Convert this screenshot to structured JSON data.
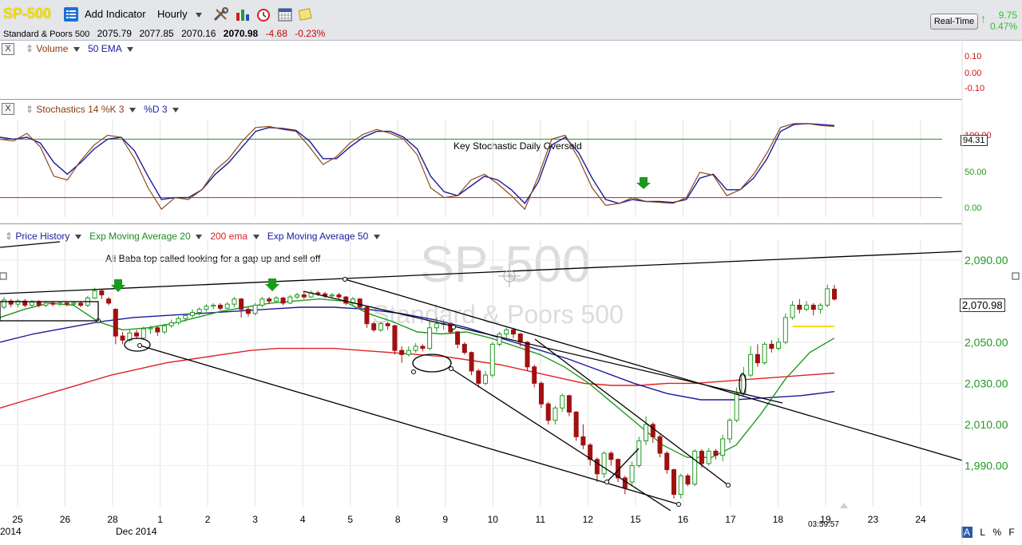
{
  "toolbar": {
    "symbol": "SP-500",
    "add_indicator": "Add Indicator",
    "period": "Hourly",
    "icons": [
      "list-icon",
      "tools-icon",
      "bar-chart-icon",
      "alarm-clock-icon",
      "calendar-grid-icon",
      "notes-icon"
    ],
    "realtime": "Real-Time",
    "rt_change_points": "9.75",
    "rt_change_pct": "0.47%"
  },
  "quote": {
    "name": "Standard & Poors 500",
    "open": "2075.79",
    "high": "2077.85",
    "low": "2070.16",
    "close": "2070.98",
    "change": "-4.68",
    "change_pct": "-0.23%"
  },
  "volume_pane": {
    "close_label": "X",
    "label": "Volume",
    "overlay": "50 EMA",
    "ticks": [
      "0.10",
      "0.00",
      "-0.10"
    ]
  },
  "stoch_pane": {
    "close_label": "X",
    "label": "Stochastics 14 %K 3",
    "overlay": "%D 3",
    "annotation": "Key Stochastic Daily Oversold",
    "ticks": [
      "100.00",
      "50.00",
      "0.00"
    ],
    "current": "94.31"
  },
  "price_pane": {
    "label": "Price History",
    "ema20": "Exp Moving Average 20",
    "ema200": "200 ema",
    "ema50": "Exp Moving Average 50",
    "watermark_symbol": "SP-500",
    "watermark_name": "Standard & Poors 500",
    "annotation": "Ali Baba top called looking for a gap up and sell off",
    "current_price": "2,070.98",
    "time_label": "03:59:57"
  },
  "colors": {
    "up": "#1f9a1f",
    "down": "#a01010",
    "ema20": "#1f9a1f",
    "ema200": "#e02020",
    "ema50": "#1a1a9a",
    "stoch_k": "#8b4a1a",
    "stoch_d": "#1a1a9a",
    "overbought": "#2a8a2a",
    "oversold": "#c02020"
  },
  "bottom_controls": [
    "A",
    "L",
    "%",
    "F"
  ],
  "chart_data": {
    "type": "candlestick",
    "x_ticks": [
      "25",
      "26",
      "28",
      "1",
      "2",
      "3",
      "4",
      "5",
      "8",
      "9",
      "10",
      "11",
      "12",
      "15",
      "16",
      "17",
      "18",
      "19",
      "23",
      "24"
    ],
    "x_sub_labels": [
      "2014",
      "Dec 2014"
    ],
    "ylim": [
      1970,
      2100
    ],
    "y_ticks": [
      2090,
      2050,
      2030,
      2010,
      1990
    ],
    "y_tick_labels": [
      "2,090.00",
      "2,050.00",
      "2,030.00",
      "2,010.00",
      "1,990.00"
    ],
    "candles": [
      {
        "o": 2067.0,
        "c": 2070.5,
        "h": 2072,
        "l": 2066
      },
      {
        "o": 2070.0,
        "c": 2068.5,
        "h": 2071,
        "l": 2067
      },
      {
        "o": 2068.5,
        "c": 2070.0,
        "h": 2071,
        "l": 2067
      },
      {
        "o": 2070.0,
        "c": 2068.0,
        "h": 2071,
        "l": 2067
      },
      {
        "o": 2068.0,
        "c": 2069.5,
        "h": 2070.5,
        "l": 2067
      },
      {
        "o": 2069.5,
        "c": 2068.0,
        "h": 2070.5,
        "l": 2067
      },
      {
        "o": 2068.0,
        "c": 2069.0,
        "h": 2070,
        "l": 2067
      },
      {
        "o": 2069.0,
        "c": 2068.5,
        "h": 2070,
        "l": 2067.5
      },
      {
        "o": 2068.5,
        "c": 2069.0,
        "h": 2070,
        "l": 2067.5
      },
      {
        "o": 2069.0,
        "c": 2068.5,
        "h": 2070,
        "l": 2067.5
      },
      {
        "o": 2068.5,
        "c": 2069.0,
        "h": 2070,
        "l": 2067.5
      },
      {
        "o": 2069.0,
        "c": 2068.0,
        "h": 2070,
        "l": 2067
      },
      {
        "o": 2068.0,
        "c": 2071.5,
        "h": 2072.5,
        "l": 2067
      },
      {
        "o": 2071.5,
        "c": 2075.0,
        "h": 2076.5,
        "l": 2071
      },
      {
        "o": 2075.0,
        "c": 2073.0,
        "h": 2075.5,
        "l": 2071
      },
      {
        "o": 2071.0,
        "c": 2069.0,
        "h": 2072,
        "l": 2068
      },
      {
        "o": 2066.0,
        "c": 2053.0,
        "h": 2066.5,
        "l": 2049
      },
      {
        "o": 2053.0,
        "c": 2051.0,
        "h": 2055,
        "l": 2049
      },
      {
        "o": 2051.0,
        "c": 2054.5,
        "h": 2056,
        "l": 2050
      },
      {
        "o": 2054.5,
        "c": 2053.0,
        "h": 2056,
        "l": 2051.5
      },
      {
        "o": 2052.0,
        "c": 2056.5,
        "h": 2057.5,
        "l": 2051
      },
      {
        "o": 2056.5,
        "c": 2057.0,
        "h": 2058,
        "l": 2054
      },
      {
        "o": 2057.0,
        "c": 2055.0,
        "h": 2058,
        "l": 2053
      },
      {
        "o": 2055.0,
        "c": 2058.0,
        "h": 2059,
        "l": 2054
      },
      {
        "o": 2058.0,
        "c": 2059.5,
        "h": 2061,
        "l": 2057
      },
      {
        "o": 2059.5,
        "c": 2061.5,
        "h": 2062.5,
        "l": 2058.5
      },
      {
        "o": 2061.5,
        "c": 2063.0,
        "h": 2064,
        "l": 2060
      },
      {
        "o": 2063.0,
        "c": 2064.5,
        "h": 2066,
        "l": 2062
      },
      {
        "o": 2064.5,
        "c": 2066.0,
        "h": 2067,
        "l": 2063
      },
      {
        "o": 2066.0,
        "c": 2067.5,
        "h": 2068.5,
        "l": 2065
      },
      {
        "o": 2067.5,
        "c": 2068.0,
        "h": 2069,
        "l": 2066
      },
      {
        "o": 2068.0,
        "c": 2066.5,
        "h": 2069,
        "l": 2065.5
      },
      {
        "o": 2066.5,
        "c": 2068.5,
        "h": 2069.5,
        "l": 2066
      },
      {
        "o": 2068.5,
        "c": 2071.0,
        "h": 2072,
        "l": 2067
      },
      {
        "o": 2071.0,
        "c": 2066.0,
        "h": 2071.5,
        "l": 2062
      },
      {
        "o": 2066.0,
        "c": 2064.0,
        "h": 2067,
        "l": 2062.5
      },
      {
        "o": 2064.0,
        "c": 2068.0,
        "h": 2069,
        "l": 2063
      },
      {
        "o": 2068.0,
        "c": 2071.0,
        "h": 2072,
        "l": 2067
      },
      {
        "o": 2071.0,
        "c": 2070.0,
        "h": 2072,
        "l": 2068.5
      },
      {
        "o": 2070.0,
        "c": 2071.5,
        "h": 2072.5,
        "l": 2069
      },
      {
        "o": 2071.5,
        "c": 2069.0,
        "h": 2072,
        "l": 2068
      },
      {
        "o": 2069.0,
        "c": 2072.0,
        "h": 2073,
        "l": 2068.5
      },
      {
        "o": 2072.0,
        "c": 2073.0,
        "h": 2074,
        "l": 2071
      },
      {
        "o": 2073.0,
        "c": 2072.0,
        "h": 2074.5,
        "l": 2071
      },
      {
        "o": 2072.0,
        "c": 2074.0,
        "h": 2075,
        "l": 2071.5
      },
      {
        "o": 2074.0,
        "c": 2073.5,
        "h": 2075,
        "l": 2072.5
      },
      {
        "o": 2073.5,
        "c": 2072.5,
        "h": 2074.5,
        "l": 2071.5
      },
      {
        "o": 2072.5,
        "c": 2073.0,
        "h": 2074,
        "l": 2071.5
      },
      {
        "o": 2073.0,
        "c": 2072.0,
        "h": 2074,
        "l": 2071
      },
      {
        "o": 2072.0,
        "c": 2069.0,
        "h": 2072.5,
        "l": 2068
      },
      {
        "o": 2069.0,
        "c": 2071.0,
        "h": 2072,
        "l": 2068
      },
      {
        "o": 2071.0,
        "c": 2067.0,
        "h": 2071.5,
        "l": 2066
      },
      {
        "o": 2067.0,
        "c": 2059.0,
        "h": 2067.5,
        "l": 2057
      },
      {
        "o": 2059.0,
        "c": 2056.0,
        "h": 2060,
        "l": 2055
      },
      {
        "o": 2056.0,
        "c": 2059.0,
        "h": 2060,
        "l": 2055
      },
      {
        "o": 2059.0,
        "c": 2058.0,
        "h": 2060,
        "l": 2056
      },
      {
        "o": 2058.0,
        "c": 2046.0,
        "h": 2058.5,
        "l": 2044
      },
      {
        "o": 2046.0,
        "c": 2044.0,
        "h": 2048,
        "l": 2040
      },
      {
        "o": 2044.0,
        "c": 2046.0,
        "h": 2048,
        "l": 2043
      },
      {
        "o": 2046.0,
        "c": 2048.0,
        "h": 2049.5,
        "l": 2045
      },
      {
        "o": 2048.0,
        "c": 2047.0,
        "h": 2049,
        "l": 2045.5
      },
      {
        "o": 2047.0,
        "c": 2057.0,
        "h": 2060,
        "l": 2046
      },
      {
        "o": 2057.0,
        "c": 2059.0,
        "h": 2062,
        "l": 2055
      },
      {
        "o": 2059.0,
        "c": 2059.0,
        "h": 2061,
        "l": 2056
      },
      {
        "o": 2059.0,
        "c": 2055.0,
        "h": 2059.5,
        "l": 2054
      },
      {
        "o": 2055.0,
        "c": 2049.0,
        "h": 2055.5,
        "l": 2047
      },
      {
        "o": 2049.0,
        "c": 2045.0,
        "h": 2050,
        "l": 2044
      },
      {
        "o": 2045.0,
        "c": 2036.0,
        "h": 2045.5,
        "l": 2034
      },
      {
        "o": 2036.0,
        "c": 2030.0,
        "h": 2037,
        "l": 2028
      },
      {
        "o": 2030.0,
        "c": 2034.0,
        "h": 2036,
        "l": 2029
      },
      {
        "o": 2034.0,
        "c": 2049.0,
        "h": 2050,
        "l": 2033
      },
      {
        "o": 2049.0,
        "c": 2054.0,
        "h": 2055,
        "l": 2048
      },
      {
        "o": 2054.0,
        "c": 2056.0,
        "h": 2057,
        "l": 2052
      },
      {
        "o": 2056.0,
        "c": 2054.0,
        "h": 2057,
        "l": 2052
      },
      {
        "o": 2054.0,
        "c": 2050.0,
        "h": 2054.5,
        "l": 2048
      },
      {
        "o": 2050.0,
        "c": 2038.0,
        "h": 2050.5,
        "l": 2036
      },
      {
        "o": 2038.0,
        "c": 2030.0,
        "h": 2039,
        "l": 2028
      },
      {
        "o": 2030.0,
        "c": 2020.0,
        "h": 2031,
        "l": 2018
      },
      {
        "o": 2020.0,
        "c": 2012.0,
        "h": 2021,
        "l": 2010
      },
      {
        "o": 2012.0,
        "c": 2018.0,
        "h": 2019,
        "l": 2010
      },
      {
        "o": 2018.0,
        "c": 2024.0,
        "h": 2025,
        "l": 2016
      },
      {
        "o": 2024.0,
        "c": 2016.0,
        "h": 2024.5,
        "l": 2014
      },
      {
        "o": 2016.0,
        "c": 2004.0,
        "h": 2016.5,
        "l": 2002
      },
      {
        "o": 2004.0,
        "c": 2000.0,
        "h": 2010,
        "l": 1998
      },
      {
        "o": 2000.0,
        "c": 1993.0,
        "h": 2001,
        "l": 1990
      },
      {
        "o": 1993.0,
        "c": 1986.0,
        "h": 1994,
        "l": 1982
      },
      {
        "o": 1986.0,
        "c": 1996.0,
        "h": 1997,
        "l": 1984
      },
      {
        "o": 1996.0,
        "c": 1993.0,
        "h": 1997,
        "l": 1990
      },
      {
        "o": 1993.0,
        "c": 1984.0,
        "h": 1993.5,
        "l": 1982
      },
      {
        "o": 1984.0,
        "c": 1979.0,
        "h": 1985,
        "l": 1976
      },
      {
        "o": 1982.0,
        "c": 1990.0,
        "h": 1992,
        "l": 1980
      },
      {
        "o": 1990.0,
        "c": 2002.0,
        "h": 2004,
        "l": 1989
      },
      {
        "o": 2002.0,
        "c": 2010.0,
        "h": 2014,
        "l": 2000
      },
      {
        "o": 2010.0,
        "c": 2004.0,
        "h": 2011,
        "l": 2001
      },
      {
        "o": 2004.0,
        "c": 1996.0,
        "h": 2005,
        "l": 1994
      },
      {
        "o": 1996.0,
        "c": 1988.0,
        "h": 1997,
        "l": 1986
      },
      {
        "o": 1988.0,
        "c": 1976.0,
        "h": 1988.5,
        "l": 1974
      },
      {
        "o": 1976.0,
        "c": 1985.0,
        "h": 1986,
        "l": 1974
      },
      {
        "o": 1985.0,
        "c": 1981.0,
        "h": 1986,
        "l": 1980
      },
      {
        "o": 1981.0,
        "c": 1997.0,
        "h": 1998,
        "l": 1980
      },
      {
        "o": 1997.0,
        "c": 1991.0,
        "h": 1998,
        "l": 1989
      },
      {
        "o": 1991.0,
        "c": 1997.0,
        "h": 1998.5,
        "l": 1990
      },
      {
        "o": 1997.0,
        "c": 1995.0,
        "h": 1998,
        "l": 1993
      },
      {
        "o": 1995.0,
        "c": 2003.0,
        "h": 2005,
        "l": 1992
      },
      {
        "o": 2003.0,
        "c": 2012.0,
        "h": 2013,
        "l": 2001
      },
      {
        "o": 2012.0,
        "c": 2025.0,
        "h": 2028,
        "l": 2011
      },
      {
        "o": 2025.0,
        "c": 2034.0,
        "h": 2038,
        "l": 2024
      },
      {
        "o": 2034.0,
        "c": 2044.0,
        "h": 2048,
        "l": 2033
      },
      {
        "o": 2044.0,
        "c": 2040.0,
        "h": 2049,
        "l": 2038
      },
      {
        "o": 2040.0,
        "c": 2049.0,
        "h": 2050,
        "l": 2039
      },
      {
        "o": 2049.0,
        "c": 2047.0,
        "h": 2051,
        "l": 2045
      },
      {
        "o": 2047.0,
        "c": 2050.0,
        "h": 2052,
        "l": 2046
      },
      {
        "o": 2050.0,
        "c": 2062.0,
        "h": 2064,
        "l": 2049
      },
      {
        "o": 2062.0,
        "c": 2068.0,
        "h": 2070,
        "l": 2061
      },
      {
        "o": 2068.0,
        "c": 2066.0,
        "h": 2071,
        "l": 2064
      },
      {
        "o": 2066.0,
        "c": 2068.0,
        "h": 2070,
        "l": 2065
      },
      {
        "o": 2068.0,
        "c": 2066.0,
        "h": 2069,
        "l": 2063
      },
      {
        "o": 2066.0,
        "c": 2068.0,
        "h": 2069,
        "l": 2064
      },
      {
        "o": 2068.0,
        "c": 2076.0,
        "h": 2078,
        "l": 2067
      },
      {
        "o": 2075.79,
        "c": 2070.98,
        "h": 2077.85,
        "l": 2070.16
      }
    ],
    "ema20": [
      2062,
      2066,
      2069,
      2068,
      2060,
      2056,
      2057,
      2059,
      2062,
      2065,
      2067,
      2069,
      2070,
      2071,
      2070,
      2064,
      2060,
      2055,
      2054,
      2055,
      2052,
      2048,
      2044,
      2038,
      2030,
      2020,
      2010,
      2000,
      1994,
      1994,
      2000,
      2015,
      2032,
      2045,
      2052
    ],
    "ema200": [
      2018,
      2022,
      2026,
      2030,
      2034,
      2037,
      2040,
      2042,
      2044,
      2046,
      2047,
      2047,
      2047,
      2046,
      2045,
      2044,
      2043,
      2041,
      2039,
      2036,
      2033,
      2030,
      2029,
      2029,
      2030,
      2030,
      2031,
      2032,
      2033,
      2034,
      2035
    ],
    "ema50": [
      2050,
      2054,
      2057,
      2060,
      2062,
      2063,
      2064,
      2065,
      2066,
      2067,
      2067,
      2066,
      2064,
      2061,
      2057,
      2052,
      2047,
      2042,
      2036,
      2030,
      2025,
      2022,
      2022,
      2023,
      2024,
      2026
    ],
    "stoch_k": [
      80,
      78,
      86,
      72,
      42,
      38,
      58,
      74,
      84,
      82,
      60,
      30,
      8,
      20,
      18,
      28,
      48,
      60,
      78,
      92,
      93,
      90,
      88,
      72,
      54,
      62,
      76,
      85,
      90,
      86,
      80,
      64,
      30,
      20,
      22,
      38,
      44,
      34,
      22,
      8,
      42,
      80,
      84,
      60,
      30,
      12,
      14,
      20,
      16,
      15,
      14,
      20,
      46,
      43,
      22,
      28,
      44,
      66,
      92,
      96,
      96,
      94,
      93
    ],
    "stoch_d": [
      82,
      80,
      82,
      76,
      56,
      44,
      56,
      70,
      80,
      82,
      68,
      42,
      18,
      20,
      20,
      28,
      44,
      56,
      72,
      88,
      92,
      91,
      89,
      78,
      60,
      60,
      72,
      82,
      88,
      88,
      82,
      70,
      42,
      26,
      22,
      32,
      42,
      38,
      28,
      14,
      36,
      74,
      82,
      66,
      40,
      18,
      14,
      18,
      16,
      16,
      15,
      18,
      40,
      44,
      28,
      28,
      40,
      60,
      88,
      95,
      96,
      95,
      94
    ],
    "stoch_overbought": 80,
    "stoch_oversold": 20
  }
}
